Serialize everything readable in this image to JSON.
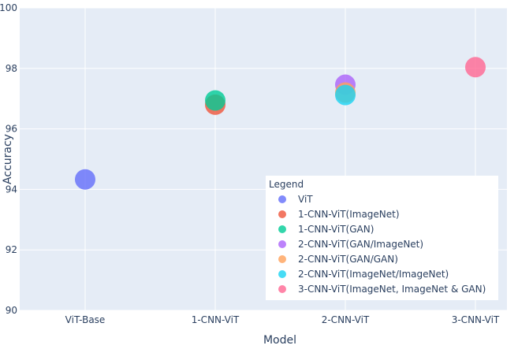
{
  "chart_data": {
    "type": "scatter",
    "xlabel": "Model",
    "ylabel": "Accuracy",
    "categories": [
      "ViT-Base",
      "1-CNN-ViT",
      "2-CNN-ViT",
      "3-CNN-ViT"
    ],
    "ylim": [
      90,
      100
    ],
    "yticks": [
      90,
      92,
      94,
      96,
      98,
      100
    ],
    "grid": true,
    "legend_title": "Legend",
    "legend_position": "bottom-right",
    "series": [
      {
        "name": "ViT",
        "color": "#636efa",
        "points": [
          {
            "x": "ViT-Base",
            "y": 94.33
          }
        ]
      },
      {
        "name": "1-CNN-ViT(ImageNet)",
        "color": "#ef553b",
        "points": [
          {
            "x": "1-CNN-ViT",
            "y": 96.8
          }
        ]
      },
      {
        "name": "1-CNN-ViT(GAN)",
        "color": "#00cc96",
        "points": [
          {
            "x": "1-CNN-ViT",
            "y": 96.94
          }
        ]
      },
      {
        "name": "2-CNN-ViT(GAN/ImageNet)",
        "color": "#ab63fa",
        "points": [
          {
            "x": "2-CNN-ViT",
            "y": 97.46
          }
        ]
      },
      {
        "name": "2-CNN-ViT(GAN/GAN)",
        "color": "#ffa15a",
        "points": [
          {
            "x": "2-CNN-ViT",
            "y": 97.2
          }
        ]
      },
      {
        "name": "2-CNN-ViT(ImageNet/ImageNet)",
        "color": "#19d3f3",
        "points": [
          {
            "x": "2-CNN-ViT",
            "y": 97.12
          }
        ]
      },
      {
        "name": "3-CNN-ViT(ImageNet, ImageNet & GAN)",
        "color": "#ff6692",
        "points": [
          {
            "x": "3-CNN-ViT",
            "y": 98.04
          }
        ]
      }
    ]
  }
}
